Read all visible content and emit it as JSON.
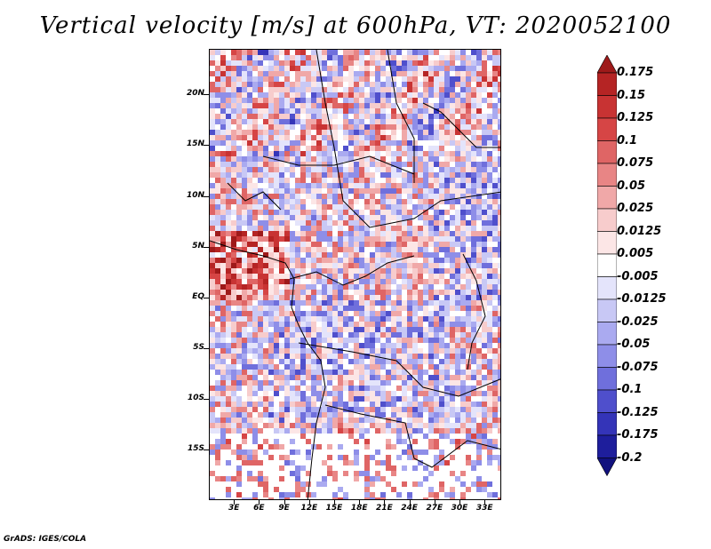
{
  "title": "Vertical velocity [m/s] at 600hPa, VT: 2020052100",
  "credit": "GrADS: IGES/COLA",
  "map": {
    "region": "Central Africa",
    "lat_labels": [
      "20N",
      "15N",
      "10N",
      "5N",
      "EQ",
      "5S",
      "10S",
      "15S"
    ],
    "lat_values": [
      20,
      15,
      10,
      5,
      0,
      -5,
      -10,
      -15
    ],
    "lon_labels": [
      "3E",
      "6E",
      "9E",
      "12E",
      "15E",
      "18E",
      "21E",
      "24E",
      "27E",
      "30E",
      "33E"
    ],
    "lon_values": [
      3,
      6,
      9,
      12,
      15,
      18,
      21,
      24,
      27,
      30,
      33
    ],
    "lat_range": [
      -20,
      24.5
    ],
    "lon_range": [
      0,
      35
    ]
  },
  "colorbar": {
    "labels": [
      "0.175",
      "0.15",
      "0.125",
      "0.1",
      "0.075",
      "0.05",
      "0.025",
      "0.0125",
      "0.005",
      "-0.005",
      "-0.0125",
      "-0.025",
      "-0.05",
      "-0.075",
      "-0.1",
      "-0.125",
      "-0.175",
      "-0.2"
    ],
    "colors": [
      "#9e1a1a",
      "#b52424",
      "#c83333",
      "#d64545",
      "#df6565",
      "#e88585",
      "#f0a8a8",
      "#f7cccc",
      "#fce6e6",
      "#ffffff",
      "#e4e4fb",
      "#c8c8f5",
      "#aaaaf0",
      "#8e8ee8",
      "#6f6fdc",
      "#4f4fcc",
      "#3434b8",
      "#1e1e9c",
      "#11117e"
    ]
  }
}
